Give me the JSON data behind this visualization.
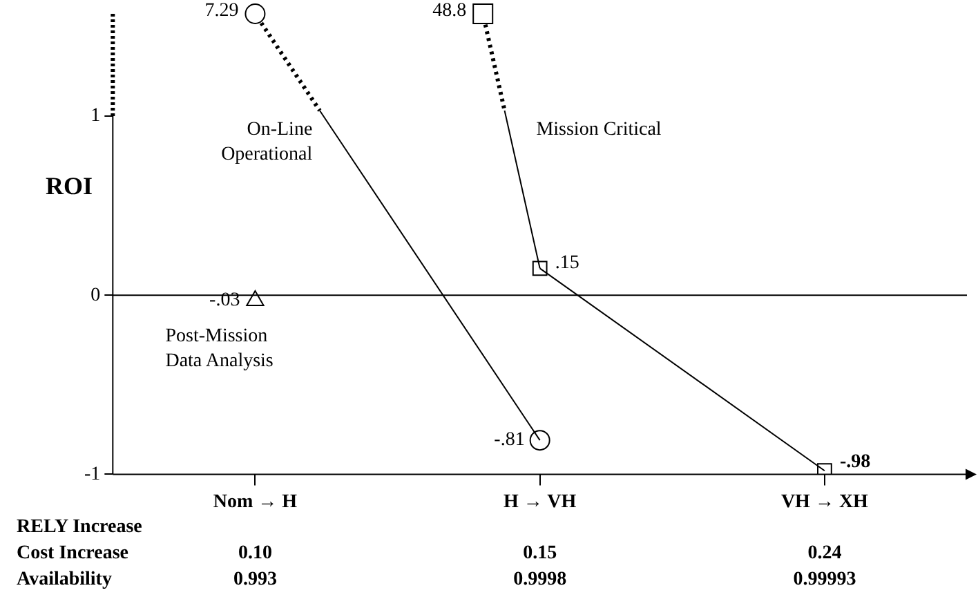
{
  "chart_data": {
    "type": "line",
    "ylabel": "ROI",
    "categories": [
      "Nom → H",
      "H → VH",
      "VH → XH"
    ],
    "series": [
      {
        "color": "#000000",
        "marker": "circle",
        "values": [
          null,
          -0.81,
          null
        ],
        "value_labels": [
          null,
          "-.81",
          null
        ]
      },
      {
        "color": "#000000",
        "marker": "square",
        "values": [
          null,
          0.15,
          -0.98
        ],
        "value_labels": [
          null,
          ".15",
          "-.98"
        ]
      },
      {
        "color": "#000000",
        "marker": "triangle",
        "values": [
          -0.03,
          null,
          null
        ],
        "value_labels": [
          "-.03",
          null,
          null
        ]
      }
    ],
    "ylim": [
      -1,
      1
    ],
    "yticks": [
      -1,
      0,
      1
    ],
    "grid": false,
    "legend": false,
    "ref_lines": [
      {
        "axis": "y",
        "value": 0
      }
    ],
    "annotations": [
      "RELY Increase",
      "Cost Increase",
      "Availability",
      "0.10",
      "0.15",
      "0.24",
      "0.993",
      "0.9998",
      "0.99993",
      "7.29",
      "48.8",
      "On-Line Operational",
      "Mission Critical",
      "Post-Mission Data Analysis"
    ]
  }
}
